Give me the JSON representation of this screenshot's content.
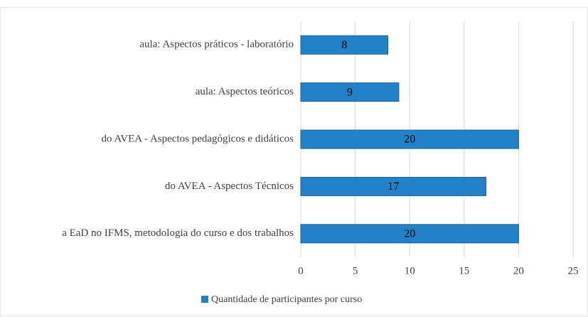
{
  "chart_data": {
    "type": "bar",
    "orientation": "horizontal",
    "categories": [
      "aula: Aspectos práticos - laboratório",
      "aula: Aspectos teóricos",
      "do AVEA - Aspectos pedagógicos e didáticos",
      "do AVEA - Aspectos Técnicos",
      "a EaD no IFMS,  metodologia do curso e dos trabalhos"
    ],
    "series": [
      {
        "name": "Quantidade de participantes por curso",
        "color": "#2381c7",
        "values": [
          8,
          9,
          20,
          17,
          20
        ]
      }
    ],
    "xlim": [
      0,
      25
    ],
    "xticks": [
      0,
      5,
      10,
      15,
      20,
      25
    ],
    "grid": true,
    "legend": "bottom"
  }
}
